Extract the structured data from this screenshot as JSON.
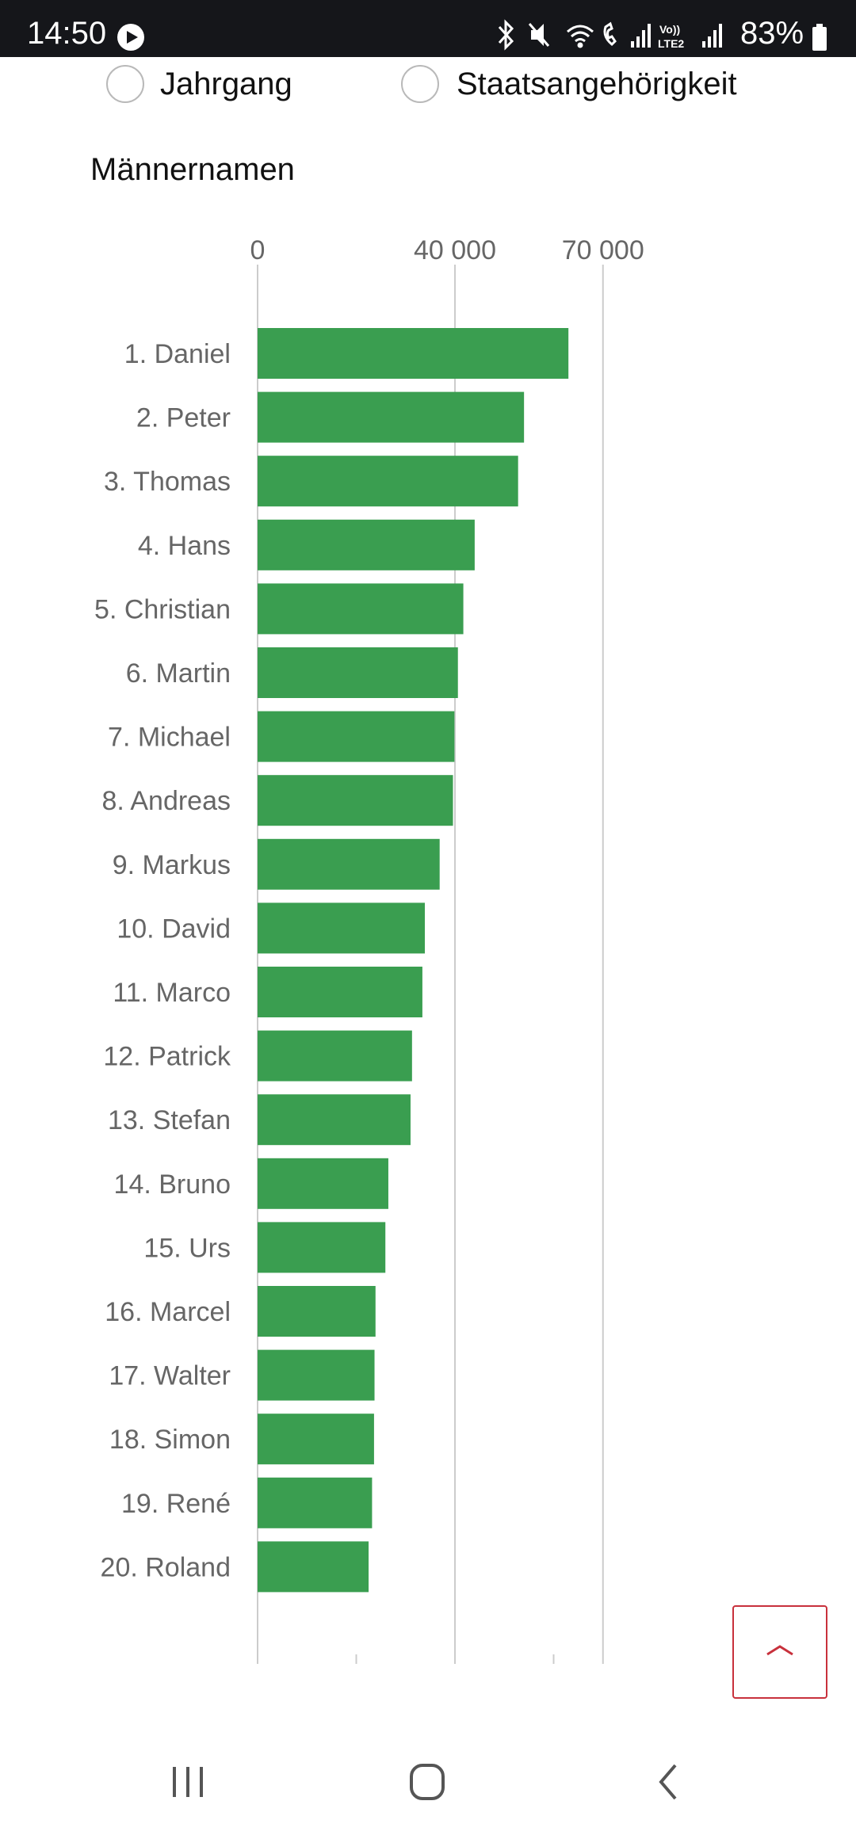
{
  "status_bar": {
    "time": "14:50",
    "battery": "83%",
    "icons": [
      "play-icon",
      "bluetooth-icon",
      "mute-icon",
      "wifi-icon",
      "wifi-call-icon",
      "signal-icon",
      "volte-icon",
      "battery-icon"
    ],
    "volte_top": "Vo))",
    "volte_bottom": "LTE2"
  },
  "filters": {
    "option_1": "Jahrgang",
    "option_2": "Staatsangehörigkeit"
  },
  "colors": {
    "bar": "#3a9e50",
    "axis_text": "#666666",
    "gridline": "#cccccc",
    "accent": "#c8313c"
  },
  "chart_data": {
    "type": "bar",
    "orientation": "horizontal",
    "title": "Männernamen",
    "x_tick_labels": [
      "0",
      "40 000",
      "70 000"
    ],
    "x_ticks": [
      0,
      40000,
      70000
    ],
    "x_minor_ticks": [
      20000,
      60000
    ],
    "xlim": [
      0,
      75000
    ],
    "grid": true,
    "categories": [
      "1. Daniel",
      "2. Peter",
      "3. Thomas",
      "4. Hans",
      "5. Christian",
      "6. Martin",
      "7. Michael",
      "8. Andreas",
      "9. Markus",
      "10. David",
      "11. Marco",
      "12. Patrick",
      "13. Stefan",
      "14. Bruno",
      "15. Urs",
      "16. Marcel",
      "17. Walter",
      "18. Simon",
      "19. René",
      "20. Roland"
    ],
    "values": [
      63000,
      54000,
      52800,
      44000,
      41700,
      40600,
      39900,
      39600,
      36900,
      33900,
      33400,
      31300,
      31000,
      26500,
      25900,
      23900,
      23700,
      23600,
      23200,
      22500
    ]
  },
  "nav": {
    "icons": [
      "recent-apps-icon",
      "home-icon",
      "back-icon"
    ]
  }
}
